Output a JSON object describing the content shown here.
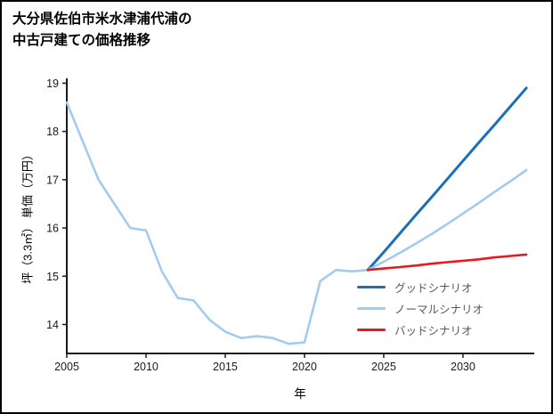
{
  "title": {
    "line1": "大分県佐伯市米水津浦代浦の",
    "line2": "中古戸建ての価格推移"
  },
  "chart_data": {
    "type": "line",
    "title": "大分県佐伯市米水津浦代浦の中古戸建ての価格推移",
    "xlabel": "年",
    "ylabel": "坪（3.3㎡） 単価（万円）",
    "xlim": [
      2005,
      2034.5
    ],
    "ylim": [
      13.4,
      19.1
    ],
    "xticks": [
      2005,
      2010,
      2015,
      2020,
      2025,
      2030
    ],
    "yticks": [
      14,
      15,
      16,
      17,
      18,
      19
    ],
    "grid": false,
    "legend_position": "inside lower right",
    "axis_color": "#1a1a1a",
    "series": [
      {
        "name": "historical",
        "in_legend": false,
        "color": "#A3CBEE",
        "width": 2.6,
        "x": [
          2005,
          2006,
          2007,
          2008,
          2009,
          2010,
          2011,
          2012,
          2013,
          2014,
          2015,
          2016,
          2017,
          2018,
          2019,
          2020,
          2021,
          2022,
          2023,
          2024
        ],
        "values": [
          18.6,
          17.8,
          17.0,
          16.5,
          16.0,
          15.95,
          15.1,
          14.55,
          14.5,
          14.1,
          13.85,
          13.72,
          13.76,
          13.72,
          13.6,
          13.63,
          14.9,
          15.13,
          15.1,
          15.13
        ]
      },
      {
        "name": "グッドシナリオ",
        "in_legend": true,
        "color": "#1B6FB8",
        "width": 3,
        "x": [
          2024,
          2025,
          2026,
          2027,
          2028,
          2029,
          2030,
          2031,
          2032,
          2033,
          2034
        ],
        "values": [
          15.13,
          15.5,
          15.88,
          16.26,
          16.63,
          17.01,
          17.39,
          17.77,
          18.14,
          18.52,
          18.9
        ]
      },
      {
        "name": "ノーマルシナリオ",
        "in_legend": true,
        "color": "#A3CBEE",
        "width": 2.6,
        "x": [
          2024,
          2025,
          2026,
          2027,
          2028,
          2029,
          2030,
          2031,
          2032,
          2033,
          2034
        ],
        "values": [
          15.13,
          15.3,
          15.48,
          15.67,
          15.87,
          16.08,
          16.3,
          16.52,
          16.75,
          16.97,
          17.2
        ]
      },
      {
        "name": "バッドシナリオ",
        "in_legend": true,
        "color": "#E8191E",
        "width": 2.6,
        "x": [
          2024,
          2025,
          2026,
          2027,
          2028,
          2029,
          2030,
          2031,
          2032,
          2033,
          2034
        ],
        "values": [
          15.13,
          15.16,
          15.19,
          15.22,
          15.26,
          15.29,
          15.32,
          15.35,
          15.39,
          15.42,
          15.45
        ]
      }
    ]
  }
}
